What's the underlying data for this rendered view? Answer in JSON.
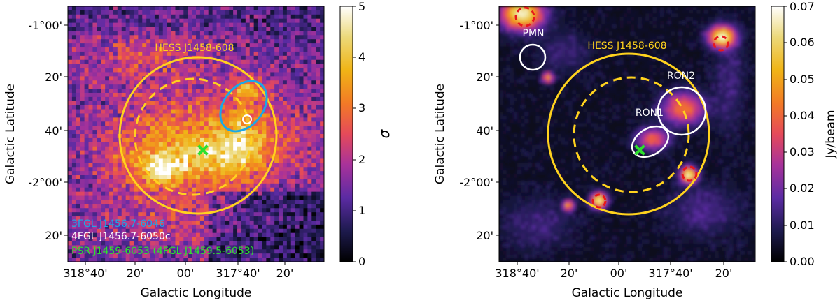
{
  "figure": {
    "panels": [
      {
        "id": "left",
        "xlabel": "Galactic Longitude",
        "ylabel": "Galactic Latitude",
        "x_ticks": [
          "318°40'",
          "20'",
          "00'",
          "317°40'",
          "20'"
        ],
        "y_ticks": [
          "-1°00'",
          "20'",
          "40'",
          "-2°00'",
          "20'"
        ],
        "source_label": "HESS J1458-608",
        "colorbar": {
          "label": "σ",
          "ticks": [
            "0",
            "1",
            "2",
            "3",
            "4",
            "5"
          ],
          "range": [
            0,
            5
          ]
        },
        "legend": [
          {
            "text": "3FGL J1456.7-6046",
            "color": "#19a8e8"
          },
          {
            "text": "4FGL J1456.7-6050c",
            "color": "#ffffff"
          },
          {
            "text": "PSR J1459-6053 (4FGL J1459.5-6053)",
            "color": "#2de02d"
          }
        ]
      },
      {
        "id": "right",
        "xlabel": "Galactic Longitude",
        "ylabel": "Galactic Latitude",
        "x_ticks": [
          "318°40'",
          "20'",
          "00'",
          "317°40'",
          "20'"
        ],
        "y_ticks": [
          "-1°00'",
          "20'",
          "40'",
          "-2°00'",
          "20'"
        ],
        "source_label": "HESS J1458-608",
        "colorbar": {
          "label": "Jy/beam",
          "ticks": [
            "0.00",
            "0.01",
            "0.02",
            "0.03",
            "0.04",
            "0.05",
            "0.06",
            "0.07"
          ],
          "range": [
            0,
            0.07
          ]
        },
        "region_labels": [
          "PMN",
          "RON1",
          "RON2"
        ]
      }
    ]
  },
  "chart_data": [
    {
      "type": "heatmap",
      "title": "",
      "xlabel": "Galactic Longitude",
      "ylabel": "Galactic Latitude",
      "xlim_deg": [
        318.75,
        317.15
      ],
      "ylim_deg": [
        -0.92,
        -2.5
      ],
      "x_tick_values_deg": [
        318.6667,
        318.3333,
        318.0,
        317.6667,
        317.3333
      ],
      "y_tick_values_deg": [
        -1.0,
        -1.3333,
        -1.6667,
        -2.0,
        -2.3333
      ],
      "colormap": "CMRmap",
      "colorbar": {
        "label": "σ",
        "min": 0,
        "max": 5
      },
      "overlays": [
        {
          "name": "HESS J1458-608",
          "shape": "circle",
          "style": "solid",
          "color": "#ffd21e",
          "center_deg": [
            317.9,
            -1.7
          ],
          "radius_deg": 0.56
        },
        {
          "name": "HESS J1458-608 inner",
          "shape": "circle",
          "style": "dashed",
          "color": "#ffd21e",
          "center_deg": [
            317.95,
            -1.7
          ],
          "radius_deg": 0.4
        },
        {
          "name": "3FGL J1456.7-6046",
          "shape": "ellipse",
          "color": "#19a8e8"
        },
        {
          "name": "4FGL J1456.7-6050c",
          "shape": "circle",
          "color": "#ffffff"
        },
        {
          "name": "PSR J1459-6053 (4FGL J1459.5-6053)",
          "shape": "cross",
          "color": "#2de02d",
          "position_deg": [
            317.87,
            -1.8
          ]
        }
      ]
    },
    {
      "type": "heatmap",
      "title": "",
      "xlabel": "Galactic Longitude",
      "ylabel": "Galactic Latitude",
      "xlim_deg": [
        318.75,
        317.15
      ],
      "ylim_deg": [
        -0.92,
        -2.5
      ],
      "x_tick_values_deg": [
        318.6667,
        318.3333,
        318.0,
        317.6667,
        317.3333
      ],
      "y_tick_values_deg": [
        -1.0,
        -1.3333,
        -1.6667,
        -2.0,
        -2.3333
      ],
      "colormap": "CMRmap",
      "colorbar": {
        "label": "Jy/beam",
        "min": 0.0,
        "max": 0.07
      },
      "overlays": [
        {
          "name": "HESS J1458-608",
          "shape": "circle",
          "style": "solid",
          "color": "#ffd21e"
        },
        {
          "name": "HESS J1458-608 inner",
          "shape": "circle",
          "style": "dashed",
          "color": "#ffd21e"
        },
        {
          "name": "PMN",
          "shape": "circle",
          "color": "#ffffff"
        },
        {
          "name": "RON1",
          "shape": "ellipse",
          "color": "#ffffff"
        },
        {
          "name": "RON2",
          "shape": "circle",
          "color": "#ffffff"
        },
        {
          "name": "excluded point sources",
          "shape": "circle",
          "style": "dashed",
          "color": "#e8171c"
        },
        {
          "name": "PSR J1459-6053",
          "shape": "cross",
          "color": "#2de02d"
        }
      ]
    }
  ]
}
